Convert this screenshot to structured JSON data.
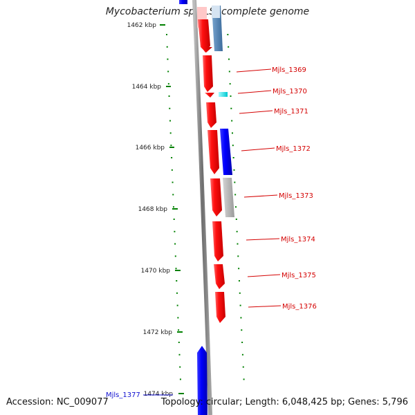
{
  "title": "Mycobacterium sp. JLS, complete genome",
  "footer": {
    "accession": "Accession: NC_009077",
    "summary": "Topology: circular; Length: 6,048,425 bp; Genes: 5,796"
  },
  "ruler": {
    "ticks": [
      "1462 kbp",
      "1464 kbp",
      "1466 kbp",
      "1468 kbp",
      "1470 kbp",
      "1472 kbp",
      "1474 kbp"
    ]
  },
  "genes": [
    {
      "label": "Mjls_1369"
    },
    {
      "label": "Mjls_1370"
    },
    {
      "label": "Mjls_1371"
    },
    {
      "label": "Mjls_1372"
    },
    {
      "label": "Mjls_1373"
    },
    {
      "label": "Mjls_1374"
    },
    {
      "label": "Mjls_1375"
    },
    {
      "label": "Mjls_1376"
    },
    {
      "label": "Mjls_1377"
    }
  ],
  "colors": {
    "forward": "#ff0000",
    "reverse": "#0000ff",
    "reverse_alt": "#4a7fb0",
    "pseudo": "#b4b4b4",
    "small": "#00e5e5",
    "label": "#d40000",
    "tick": "#008000",
    "backbone": "#777777"
  }
}
